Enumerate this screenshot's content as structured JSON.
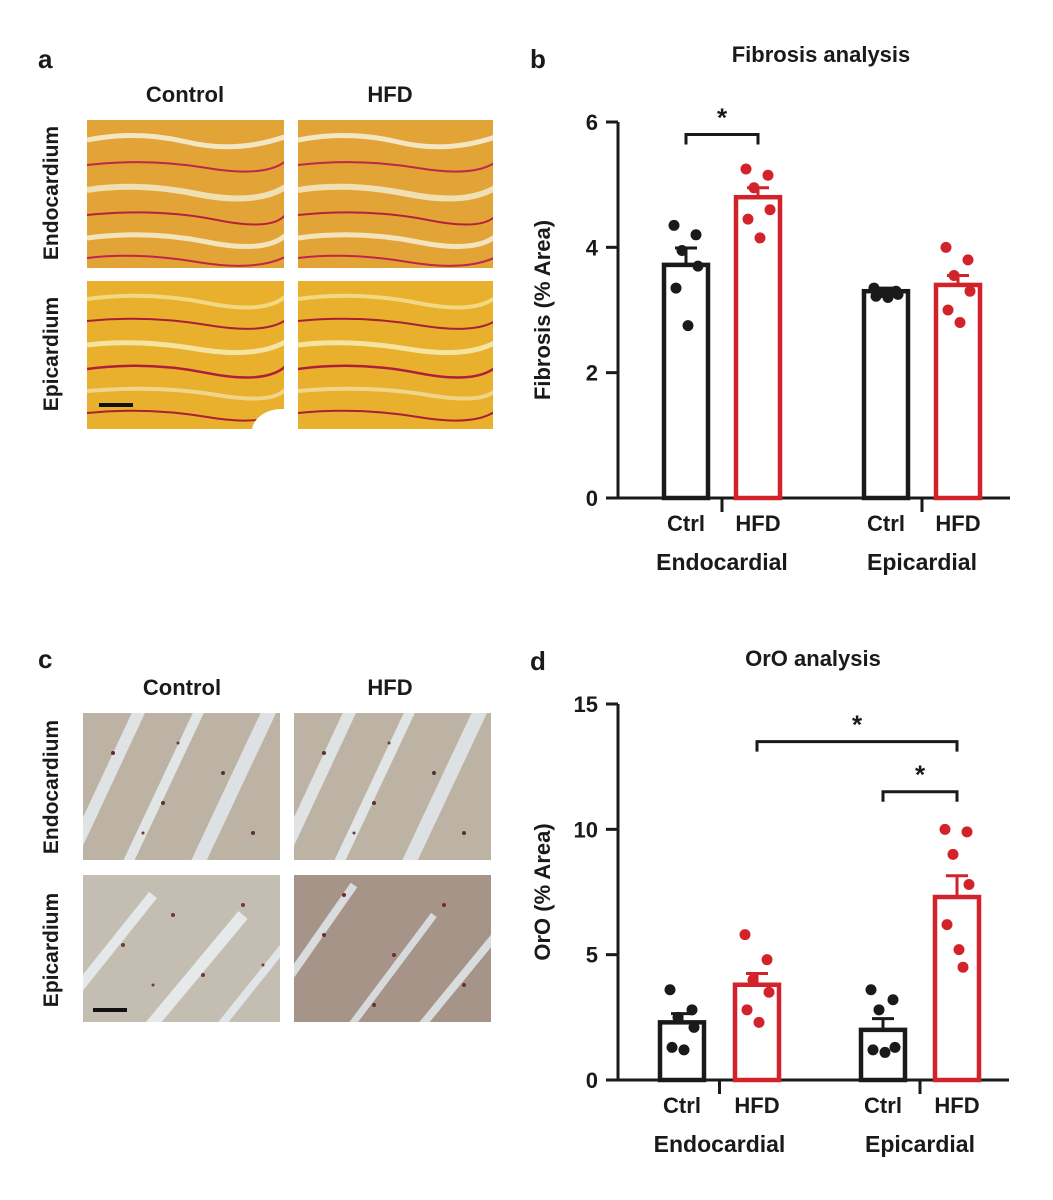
{
  "panels": {
    "a": {
      "letter": "a",
      "columns": [
        "Control",
        "HFD"
      ],
      "rows": [
        "Endocardium",
        "Epicardium"
      ]
    },
    "b": {
      "letter": "b"
    },
    "c": {
      "letter": "c",
      "columns": [
        "Control",
        "HFD"
      ],
      "rows": [
        "Endocardium",
        "Epicardium"
      ]
    },
    "d": {
      "letter": "d"
    }
  },
  "colors": {
    "ctrl": "#1a1a1a",
    "hfd": "#d2232a",
    "stain_ab": "#e0a030",
    "stain_cd": "#bdb5a8"
  },
  "chart_data": [
    {
      "type": "bar",
      "title": "Fibrosis analysis",
      "ylabel": "Fibrosis (% Area)",
      "ylim": [
        0,
        6
      ],
      "yticks": [
        0,
        2,
        4,
        6
      ],
      "groups": [
        "Endocardial",
        "Epicardial"
      ],
      "categories": [
        "Ctrl",
        "HFD",
        "Ctrl",
        "HFD"
      ],
      "bars": [
        {
          "group": "Endocardial",
          "label": "Ctrl",
          "mean": 3.72,
          "sem": 0.27,
          "points": [
            4.35,
            4.2,
            3.95,
            3.7,
            3.35,
            2.75
          ]
        },
        {
          "group": "Endocardial",
          "label": "HFD",
          "mean": 4.8,
          "sem": 0.15,
          "points": [
            5.25,
            5.15,
            4.95,
            4.6,
            4.45,
            4.15
          ]
        },
        {
          "group": "Epicardial",
          "label": "Ctrl",
          "mean": 3.3,
          "sem": 0.05,
          "points": [
            3.35,
            3.3,
            3.28,
            3.25,
            3.22,
            3.2
          ]
        },
        {
          "group": "Epicardial",
          "label": "HFD",
          "mean": 3.4,
          "sem": 0.15,
          "points": [
            4.0,
            3.8,
            3.55,
            3.3,
            3.0,
            2.8
          ]
        }
      ],
      "significance": [
        {
          "from": 0,
          "to": 1,
          "y": 5.8,
          "label": "*"
        }
      ]
    },
    {
      "type": "bar",
      "title": "OrO analysis",
      "ylabel": "OrO (% Area)",
      "ylim": [
        0,
        15
      ],
      "yticks": [
        0,
        5,
        10,
        15
      ],
      "groups": [
        "Endocardial",
        "Epicardial"
      ],
      "categories": [
        "Ctrl",
        "HFD",
        "Ctrl",
        "HFD"
      ],
      "bars": [
        {
          "group": "Endocardial",
          "label": "Ctrl",
          "mean": 2.3,
          "sem": 0.35,
          "points": [
            3.6,
            2.8,
            2.5,
            2.1,
            1.3,
            1.2
          ]
        },
        {
          "group": "Endocardial",
          "label": "HFD",
          "mean": 3.8,
          "sem": 0.45,
          "points": [
            5.8,
            4.8,
            4.0,
            3.5,
            2.8,
            2.3
          ]
        },
        {
          "group": "Epicardial",
          "label": "Ctrl",
          "mean": 2.0,
          "sem": 0.45,
          "points": [
            3.6,
            3.2,
            2.8,
            1.3,
            1.2,
            1.1
          ]
        },
        {
          "group": "Epicardial",
          "label": "HFD",
          "mean": 7.3,
          "sem": 0.85,
          "points": [
            10.0,
            9.9,
            9.0,
            7.8,
            6.2,
            5.2,
            4.5
          ]
        }
      ],
      "significance": [
        {
          "from": 1,
          "to": 3,
          "y": 13.5,
          "label": "*"
        },
        {
          "from": 2,
          "to": 3,
          "y": 11.5,
          "label": "*"
        }
      ]
    }
  ]
}
